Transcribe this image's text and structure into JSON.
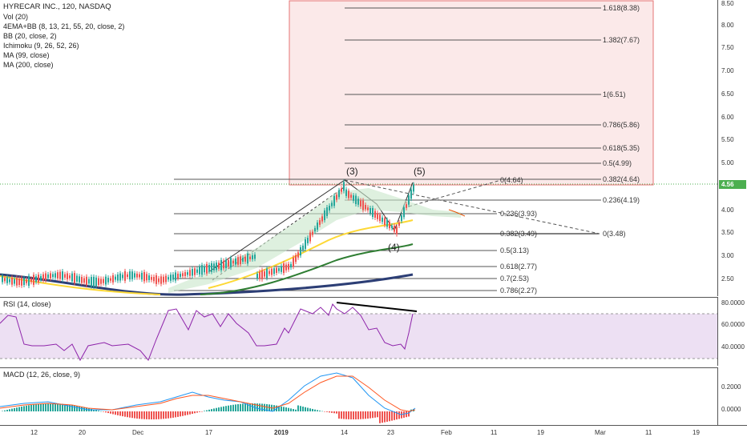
{
  "legend": {
    "symbol": "HYRECAR INC., 120, NASDAQ",
    "indicators": [
      "Vol (20)",
      "4EMA+BB (8, 13, 21, 55, 20, close, 2)",
      "BB (20, close, 2)",
      "Ichimoku (9, 26, 52, 26)",
      "MA (99, close)",
      "MA (200, close)"
    ]
  },
  "rsi": {
    "label": "RSI (14, close)",
    "axis": [
      "80.0000",
      "60.0000",
      "40.0000"
    ]
  },
  "macd": {
    "label": "MACD (12, 26, close, 9)",
    "axis": [
      "0.2000",
      "0.0000"
    ]
  },
  "price_axis": [
    "8.50",
    "8.00",
    "7.50",
    "7.00",
    "6.50",
    "6.00",
    "5.50",
    "5.00",
    "4.50",
    "4.00",
    "3.50",
    "3.00",
    "2.50"
  ],
  "current_price": "4.56",
  "time_axis": [
    "12",
    "20",
    "Dec",
    "17",
    "2019",
    "14",
    "23",
    "Feb",
    "11",
    "19",
    "Mar",
    "11",
    "19"
  ],
  "fib_upper": [
    "1.618(8.38)",
    "1.382(7.67)",
    "1(6.51)",
    "0.786(5.86)",
    "0.618(5.35)",
    "0.5(4.99)",
    "0.382(4.64)",
    "0.236(4.19)"
  ],
  "fib_lower": [
    "0(4.64)",
    "0.236(3.93)",
    "0.382(3.49)",
    "0.5(3.13)",
    "0.618(2.77)",
    "0.7(2.53)",
    "0.786(2.27)",
    "0(3.48)"
  ],
  "waves": [
    "(3)",
    "(5)",
    "(4)"
  ],
  "colors": {
    "accent_green": "#4caf50",
    "fib_box": "#f44336",
    "rsi_band": "#e1bee7",
    "rsi_line": "#9c27b0"
  }
}
